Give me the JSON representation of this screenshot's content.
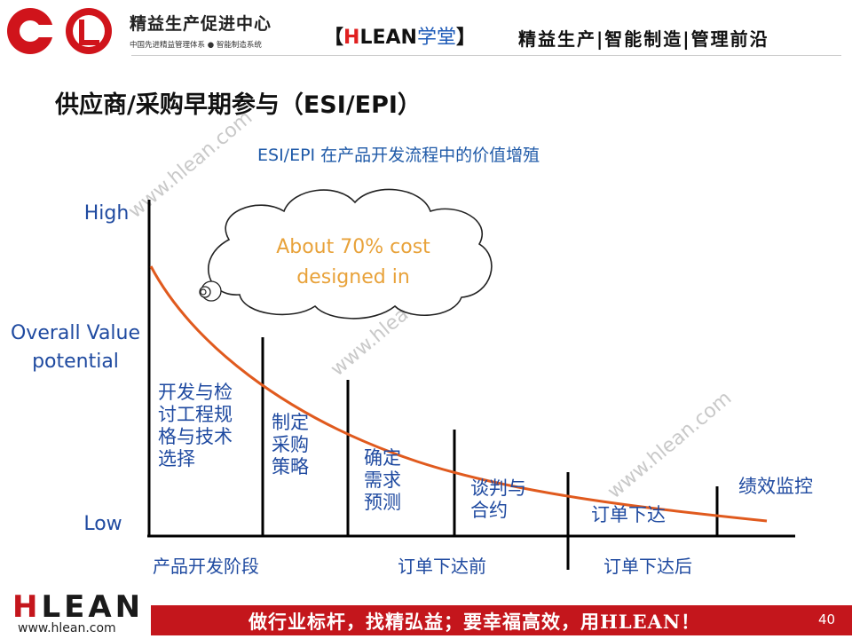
{
  "header": {
    "org_name": "精益生产促进中心",
    "org_sub": "中国先进精益管理体系 ● 智能制造系统",
    "brand_bracket_open": "【",
    "brand_h": "H",
    "brand_lean": "LEAN",
    "brand_xuetang": "学堂",
    "brand_bracket_close": "】",
    "tagline": "精益生产|智能制造|管理前沿"
  },
  "slide": {
    "title": "供应商/采购早期参与（ESI/EPI）",
    "subtitle": "ESI/EPI 在产品开发流程中的价值增殖"
  },
  "diagram": {
    "y_high": "High",
    "y_label_line1": "Overall Value",
    "y_label_line2": "potential",
    "y_low": "Low",
    "cloud_line1": "About 70% cost",
    "cloud_line2": "designed in",
    "stages": [
      [
        "开发与检",
        "讨工程规",
        "格与技术",
        "选择"
      ],
      [
        "制定",
        "采购",
        "策略"
      ],
      [
        "确定",
        "需求",
        "预测"
      ],
      [
        "谈判与",
        "合约"
      ],
      [
        "订单下达"
      ],
      [
        "绩效监控"
      ]
    ],
    "phases": [
      "产品开发阶段",
      "订单下达前",
      "订单下达后"
    ],
    "colors": {
      "curve": "#e05a1e",
      "axis": "#000000",
      "text": "#1f4aa0",
      "cloud_text": "#e8a23a"
    }
  },
  "watermark": [
    "www.hlean.com",
    "www.hlean.com",
    "www.hlean.com"
  ],
  "footer": {
    "logo_h": "H",
    "logo_rest": "LEAN",
    "site": "www.hlean.com",
    "slogan": "做行业标杆，找精弘益；要幸福高效，用HLEAN！",
    "page": "40"
  }
}
